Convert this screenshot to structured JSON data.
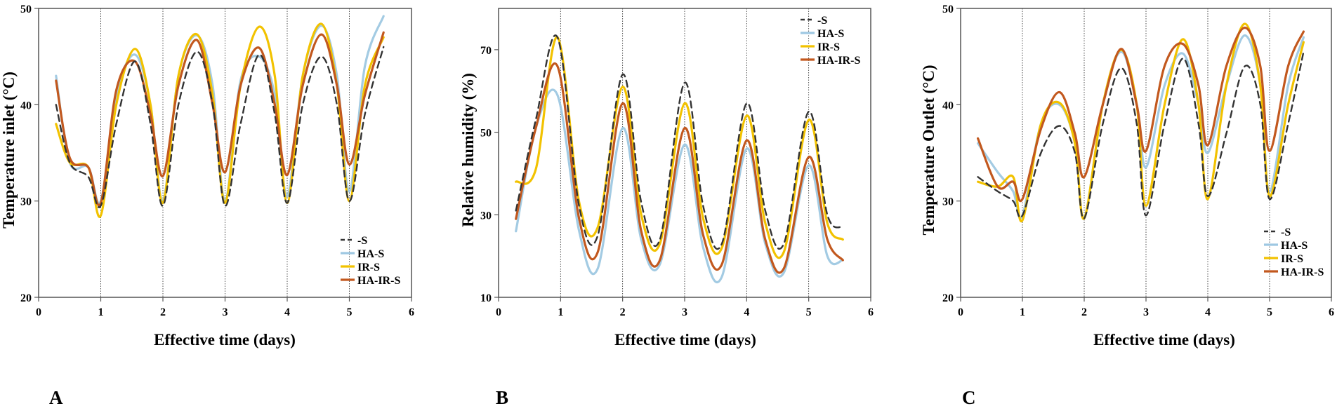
{
  "panel_letters": [
    "A",
    "B",
    "C"
  ],
  "colors": {
    "S": "#333333",
    "HA-S": "#9ec8e2",
    "IR-S": "#f2c200",
    "HA-IR-S": "#c2581e",
    "axis": "#555555",
    "grid": "#222222"
  },
  "chart_data": [
    {
      "type": "line",
      "panel": "A",
      "xlabel": "Effective time (days)",
      "ylabel": "Temperature inlet (°C)",
      "xlim": [
        0,
        6
      ],
      "ylim": [
        20,
        50
      ],
      "xticks": [
        0,
        1,
        2,
        3,
        4,
        5,
        6
      ],
      "yticks": [
        20,
        30,
        40,
        50
      ],
      "vlines": [
        1,
        2,
        3,
        4,
        5
      ],
      "legend_position": "bottom-right",
      "series": [
        {
          "name": "-S",
          "key": "S",
          "dash": "dashed",
          "x": [
            0.28,
            0.5,
            0.8,
            1.0,
            1.25,
            1.55,
            1.8,
            2.0,
            2.25,
            2.55,
            2.8,
            3.0,
            3.25,
            3.55,
            3.8,
            4.0,
            4.25,
            4.55,
            4.8,
            5.0,
            5.25,
            5.55
          ],
          "y": [
            40,
            34,
            32.5,
            29.5,
            38,
            44.5,
            38,
            29.5,
            40,
            45.5,
            40,
            29.5,
            38,
            45.2,
            39,
            29.8,
            40,
            45,
            40,
            30,
            39,
            46
          ]
        },
        {
          "name": "HA-S",
          "key": "HA-S",
          "dash": "solid",
          "x": [
            0.28,
            0.5,
            0.8,
            1.0,
            1.25,
            1.55,
            1.8,
            2.0,
            2.25,
            2.55,
            2.8,
            3.0,
            3.25,
            3.55,
            3.8,
            4.0,
            4.25,
            4.55,
            4.8,
            5.0,
            5.25,
            5.55
          ],
          "y": [
            43,
            34,
            33.5,
            30,
            41,
            45.2,
            40,
            30,
            43,
            47.2,
            42,
            30,
            42.5,
            45,
            41,
            30.5,
            43,
            48.2,
            43,
            31,
            44,
            49.2
          ]
        },
        {
          "name": "IR-S",
          "key": "IR-S",
          "dash": "solid",
          "x": [
            0.28,
            0.5,
            0.8,
            1.0,
            1.25,
            1.55,
            1.8,
            2.0,
            2.25,
            2.55,
            2.8,
            3.0,
            3.25,
            3.55,
            3.8,
            4.0,
            4.25,
            4.55,
            4.8,
            5.0,
            5.25,
            5.55
          ],
          "y": [
            38,
            34,
            33.5,
            28.5,
            40,
            45.8,
            40,
            29.8,
            43,
            47.3,
            41,
            29.8,
            42,
            48.1,
            43,
            29.8,
            43,
            48.4,
            42,
            30,
            42,
            47
          ]
        },
        {
          "name": "HA-IR-S",
          "key": "HA-IR-S",
          "dash": "solid",
          "x": [
            0.28,
            0.5,
            0.8,
            1.0,
            1.25,
            1.55,
            1.8,
            2.0,
            2.25,
            2.55,
            2.8,
            3.0,
            3.25,
            3.55,
            3.8,
            4.0,
            4.25,
            4.55,
            4.8,
            5.0,
            5.25,
            5.55
          ],
          "y": [
            42.5,
            34.5,
            33.5,
            29.8,
            41.5,
            44.5,
            39,
            32.6,
            42,
            46.7,
            40,
            33,
            42,
            45.9,
            40,
            32.7,
            42,
            47.3,
            42,
            33.8,
            41,
            47.5
          ]
        }
      ]
    },
    {
      "type": "line",
      "panel": "B",
      "xlabel": "Effective time (days)",
      "ylabel": "Relative humidity (%)",
      "xlim": [
        0,
        6
      ],
      "ylim": [
        10,
        80
      ],
      "xticks": [
        0,
        1,
        2,
        3,
        4,
        5,
        6
      ],
      "yticks": [
        10,
        30,
        50,
        70
      ],
      "vlines": [
        1,
        2,
        3,
        4,
        5
      ],
      "legend_position": "top-right",
      "series": [
        {
          "name": "-S",
          "key": "S",
          "dash": "dashed",
          "x": [
            0.28,
            0.6,
            0.95,
            1.3,
            1.6,
            2.0,
            2.3,
            2.6,
            3.0,
            3.3,
            3.6,
            4.0,
            4.3,
            4.6,
            5.0,
            5.3,
            5.55
          ],
          "y": [
            31,
            53,
            73,
            32,
            25,
            64,
            33,
            24,
            62,
            32,
            23,
            57,
            31,
            23,
            55,
            30,
            27
          ]
        },
        {
          "name": "HA-S",
          "key": "HA-S",
          "dash": "solid",
          "x": [
            0.28,
            0.6,
            0.95,
            1.3,
            1.6,
            2.0,
            2.3,
            2.6,
            3.0,
            3.3,
            3.6,
            4.0,
            4.3,
            4.6,
            5.0,
            5.3,
            5.55
          ],
          "y": [
            26,
            51,
            59,
            26,
            17,
            51,
            24,
            18,
            47,
            22,
            15,
            46,
            23,
            16,
            42,
            20,
            19
          ]
        },
        {
          "name": "IR-S",
          "key": "IR-S",
          "dash": "solid",
          "x": [
            0.28,
            0.6,
            0.95,
            1.3,
            1.6,
            2.0,
            2.3,
            2.6,
            3.0,
            3.3,
            3.6,
            4.0,
            4.3,
            4.6,
            5.0,
            5.3,
            5.55
          ],
          "y": [
            38,
            41,
            73,
            33,
            27,
            61,
            30,
            23,
            57,
            29,
            22,
            54,
            28,
            21,
            53,
            28,
            24
          ]
        },
        {
          "name": "HA-IR-S",
          "key": "HA-IR-S",
          "dash": "solid",
          "x": [
            0.28,
            0.6,
            0.95,
            1.3,
            1.6,
            2.0,
            2.3,
            2.6,
            3.0,
            3.3,
            3.6,
            4.0,
            4.3,
            4.6,
            5.0,
            5.3,
            5.55
          ],
          "y": [
            29,
            51,
            66,
            29,
            21,
            57,
            26,
            19,
            51,
            25,
            18,
            48,
            24,
            17,
            44,
            24,
            19
          ]
        }
      ]
    },
    {
      "type": "line",
      "panel": "C",
      "xlabel": "Effective time (days)",
      "ylabel": "Temperature  Outlet (°C)",
      "xlim": [
        0,
        6
      ],
      "ylim": [
        20,
        50
      ],
      "xticks": [
        0,
        1,
        2,
        3,
        4,
        5,
        6
      ],
      "yticks": [
        20,
        30,
        40,
        50
      ],
      "vlines": [
        1,
        2,
        3,
        4,
        5
      ],
      "legend_position": "bottom-right",
      "series": [
        {
          "name": "-S",
          "key": "S",
          "dash": "dashed",
          "x": [
            0.28,
            0.6,
            0.85,
            1.0,
            1.3,
            1.6,
            1.85,
            2.0,
            2.3,
            2.6,
            2.85,
            3.0,
            3.3,
            3.6,
            3.85,
            4.0,
            4.3,
            4.6,
            4.85,
            5.0,
            5.3,
            5.55
          ],
          "y": [
            32.5,
            31,
            30,
            28.5,
            35,
            37.8,
            35,
            28.2,
            38,
            43.8,
            38,
            28.5,
            38,
            44.8,
            38,
            30.5,
            37,
            44,
            40,
            30.2,
            38,
            45.5
          ]
        },
        {
          "name": "HA-S",
          "key": "HA-S",
          "dash": "solid",
          "x": [
            0.28,
            0.6,
            0.85,
            1.0,
            1.3,
            1.6,
            1.85,
            2.0,
            2.3,
            2.6,
            2.85,
            3.0,
            3.3,
            3.6,
            3.85,
            4.0,
            4.3,
            4.6,
            4.85,
            5.0,
            5.3,
            5.55
          ],
          "y": [
            36,
            33,
            31,
            28.5,
            38,
            40,
            36,
            28.2,
            40,
            45.5,
            40,
            33.5,
            42,
            45.3,
            40,
            35,
            42,
            47.2,
            42,
            31,
            42,
            47
          ]
        },
        {
          "name": "IR-S",
          "key": "IR-S",
          "dash": "solid",
          "x": [
            0.28,
            0.6,
            0.85,
            1.0,
            1.3,
            1.6,
            1.85,
            2.0,
            2.3,
            2.6,
            2.85,
            3.0,
            3.3,
            3.6,
            3.85,
            4.0,
            4.3,
            4.6,
            4.85,
            5.0,
            5.3,
            5.55
          ],
          "y": [
            32,
            31.5,
            32.5,
            28,
            38,
            40.2,
            36,
            28.2,
            40,
            45.7,
            40,
            29.5,
            40,
            46.8,
            40,
            30.2,
            42,
            48.4,
            42,
            30.5,
            40,
            46.5
          ]
        },
        {
          "name": "HA-IR-S",
          "key": "HA-IR-S",
          "dash": "solid",
          "x": [
            0.28,
            0.6,
            0.85,
            1.0,
            1.3,
            1.6,
            1.85,
            2.0,
            2.3,
            2.6,
            2.85,
            3.0,
            3.3,
            3.6,
            3.85,
            4.0,
            4.3,
            4.6,
            4.85,
            5.0,
            5.3,
            5.55
          ],
          "y": [
            36.5,
            31.5,
            32,
            30.2,
            37.5,
            41.3,
            37,
            32.5,
            40,
            45.8,
            40,
            35.2,
            44,
            46.3,
            42,
            35.8,
            44,
            48,
            44,
            35.2,
            44,
            47.6
          ]
        }
      ]
    }
  ]
}
